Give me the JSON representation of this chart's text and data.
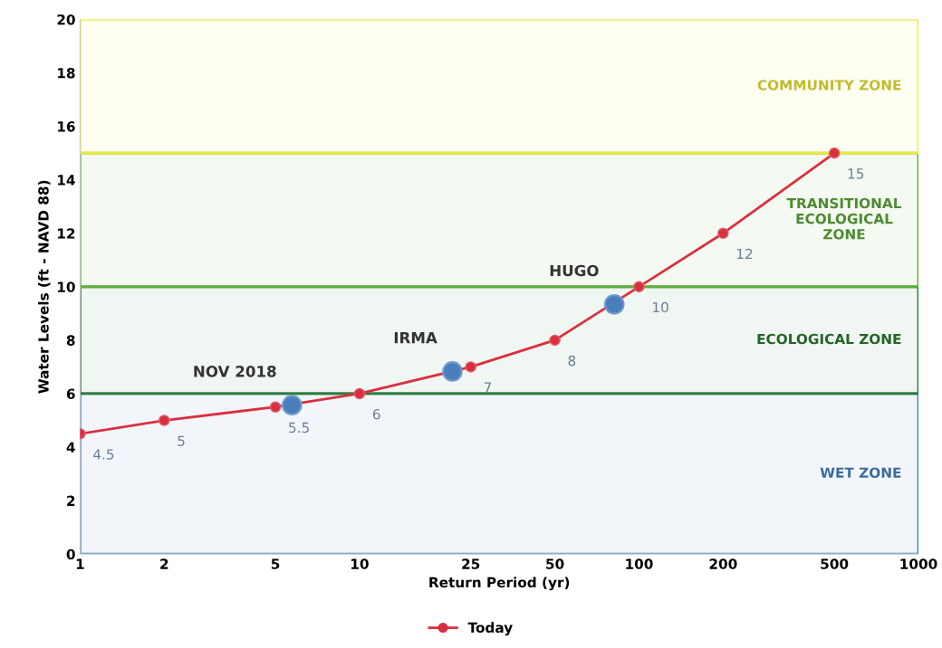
{
  "chart_data": {
    "type": "line",
    "xlabel": "Return Period (yr)",
    "ylabel": "Water Levels (ft - NAVD 88)",
    "log": "x",
    "xlim": [
      1,
      1000
    ],
    "xticks": [
      1,
      2,
      5,
      10,
      25,
      50,
      100,
      200,
      500,
      1000
    ],
    "ylim": [
      0,
      20
    ],
    "yticks": [
      0,
      2,
      4,
      6,
      8,
      10,
      12,
      14,
      16,
      18,
      20
    ],
    "grid": false,
    "legend": "bottom",
    "marker": "circle",
    "line_style": "solid",
    "series": [
      {
        "name": "Today",
        "color": "#d9303e",
        "x": [
          1,
          2,
          5,
          10,
          25,
          50,
          100,
          200,
          500
        ],
        "values": [
          4.5,
          5,
          5.5,
          6,
          7,
          8,
          10,
          12,
          15
        ],
        "value_labels": [
          "4.5",
          "5",
          "5.5",
          "6",
          "7",
          "8",
          "10",
          "12",
          "15"
        ]
      },
      {
        "type": "scatter",
        "color": "#4a7ebb",
        "x": [
          5.73,
          21.5,
          81.6
        ],
        "values": [
          5.57,
          6.83,
          9.34
        ]
      }
    ],
    "bands": [
      {
        "axis": "y",
        "from": 0,
        "to": 6,
        "label": "WET ZONE",
        "color": "#4a86c8"
      },
      {
        "axis": "y",
        "from": 6,
        "to": 10,
        "label": "ECOLOGICAL ZONE",
        "color": "#2e7d32"
      },
      {
        "axis": "y",
        "from": 10,
        "to": 15,
        "label": "TRANSITIONAL\nECOLOGICAL\nZONE",
        "color": "#5fae3f"
      },
      {
        "axis": "y",
        "from": 15,
        "to": 20,
        "label": "COMMUNITY ZONE",
        "color": "#f2ea3a"
      }
    ],
    "annotations": [
      {
        "text": "NOV 2018",
        "x": 5.73,
        "y": 5.57
      },
      {
        "text": "IRMA",
        "x": 21.5,
        "y": 6.83
      },
      {
        "text": "HUGO",
        "x": 81.6,
        "y": 9.34
      }
    ]
  }
}
